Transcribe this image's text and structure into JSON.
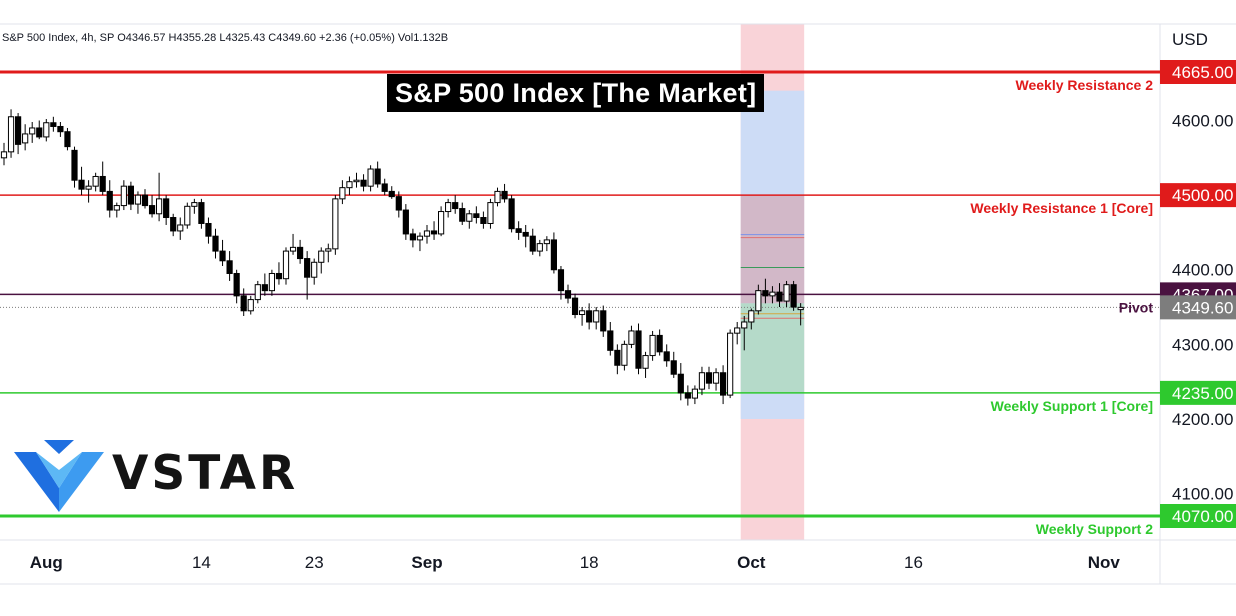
{
  "header": {
    "symbol_line": "S&P 500 Index, 4h, SP",
    "ohlc": "O4346.57 H4355.28 L4325.43 C4349.60 +2.36 (+0.05%) Vol1.132B"
  },
  "title": "S&P 500 Index [The Market]",
  "logo": {
    "text": "VSTAR",
    "icon": "vstar-v-logo-icon",
    "colors": [
      "#1f6fe0",
      "#5db8f5"
    ]
  },
  "currency": "USD",
  "chart_data": {
    "type": "candlestick",
    "y_range": [
      4040,
      4700
    ],
    "y_ticks": [
      {
        "value": 4600,
        "label": "4600.00"
      },
      {
        "value": 4400,
        "label": "4400.00"
      },
      {
        "value": 4300,
        "label": "4300.00"
      },
      {
        "value": 4200,
        "label": "4200.00"
      },
      {
        "value": 4100,
        "label": "4100.00"
      }
    ],
    "x_ticks": [
      {
        "bar": 6,
        "label": "Aug"
      },
      {
        "bar": 28,
        "label": "14"
      },
      {
        "bar": 44,
        "label": "23"
      },
      {
        "bar": 60,
        "label": "Sep"
      },
      {
        "bar": 83,
        "label": "18"
      },
      {
        "bar": 106,
        "label": "Oct"
      },
      {
        "bar": 129,
        "label": "16"
      },
      {
        "bar": 156,
        "label": "Nov"
      }
    ],
    "levels": [
      {
        "name": "Weekly Resistance 2",
        "value": 4665,
        "label": "4665.00",
        "color": "#e01b1b",
        "style": "thick"
      },
      {
        "name": "Weekly Resistance 1 [Core]",
        "value": 4500,
        "label": "4500.00",
        "color": "#e01b1b",
        "style": "normal"
      },
      {
        "name": "",
        "value": 4367,
        "label": "4367.00",
        "color": "#4a1240",
        "style": "normal"
      },
      {
        "name": "Pivot",
        "value": 4349.6,
        "label": "4349.60",
        "color": "#7d7d7d",
        "style": "dotted",
        "name_color": "#4a1240"
      },
      {
        "name": "Weekly Support 1 [Core]",
        "value": 4235,
        "label": "4235.00",
        "color": "#2ec92e",
        "style": "normal"
      },
      {
        "name": "Weekly Support 2",
        "value": 4070,
        "label": "4070.00",
        "color": "#2ec92e",
        "style": "thick"
      }
    ],
    "highlight_band": {
      "from_bar": 104.5,
      "to_bar": 113.5,
      "top_color": "#f9d3d8",
      "mid_color": "#cddcf6",
      "bottom_color": "#f9d3d8",
      "mid_range": [
        4200,
        4640
      ]
    },
    "projection_box": {
      "from_bar": 104.5,
      "to_bar": 113.5,
      "upper_range": [
        4355,
        4500
      ],
      "lower_range": [
        4235,
        4355
      ],
      "lines": [
        {
          "value": 4447,
          "color": "#7b92e8"
        },
        {
          "value": 4443,
          "color": "#e07070"
        },
        {
          "value": 4403,
          "color": "#3a9a5a"
        },
        {
          "value": 4341,
          "color": "#d4a640"
        },
        {
          "value": 4335,
          "color": "#e07070"
        }
      ]
    },
    "candles": [
      [
        4550,
        4570,
        4540,
        4558
      ],
      [
        4558,
        4615,
        4550,
        4605
      ],
      [
        4605,
        4610,
        4555,
        4568
      ],
      [
        4570,
        4595,
        4560,
        4582
      ],
      [
        4582,
        4598,
        4570,
        4590
      ],
      [
        4590,
        4600,
        4575,
        4578
      ],
      [
        4578,
        4602,
        4572,
        4597
      ],
      [
        4597,
        4605,
        4585,
        4592
      ],
      [
        4592,
        4598,
        4578,
        4585
      ],
      [
        4585,
        4590,
        4560,
        4565
      ],
      [
        4560,
        4565,
        4510,
        4520
      ],
      [
        4520,
        4538,
        4500,
        4508
      ],
      [
        4508,
        4520,
        4490,
        4512
      ],
      [
        4512,
        4530,
        4505,
        4525
      ],
      [
        4525,
        4545,
        4500,
        4505
      ],
      [
        4505,
        4520,
        4470,
        4480
      ],
      [
        4480,
        4490,
        4470,
        4486
      ],
      [
        4486,
        4520,
        4480,
        4512
      ],
      [
        4512,
        4518,
        4480,
        4488
      ],
      [
        4488,
        4505,
        4475,
        4500
      ],
      [
        4500,
        4508,
        4482,
        4486
      ],
      [
        4486,
        4500,
        4470,
        4475
      ],
      [
        4475,
        4530,
        4465,
        4495
      ],
      [
        4495,
        4500,
        4460,
        4470
      ],
      [
        4470,
        4475,
        4445,
        4452
      ],
      [
        4452,
        4470,
        4440,
        4460
      ],
      [
        4460,
        4490,
        4455,
        4485
      ],
      [
        4485,
        4495,
        4475,
        4490
      ],
      [
        4490,
        4495,
        4455,
        4462
      ],
      [
        4462,
        4470,
        4435,
        4445
      ],
      [
        4445,
        4455,
        4415,
        4425
      ],
      [
        4425,
        4440,
        4405,
        4412
      ],
      [
        4412,
        4425,
        4385,
        4395
      ],
      [
        4395,
        4400,
        4355,
        4365
      ],
      [
        4365,
        4375,
        4338,
        4345
      ],
      [
        4345,
        4365,
        4340,
        4360
      ],
      [
        4360,
        4385,
        4355,
        4380
      ],
      [
        4380,
        4395,
        4365,
        4372
      ],
      [
        4372,
        4400,
        4365,
        4395
      ],
      [
        4395,
        4410,
        4380,
        4388
      ],
      [
        4388,
        4430,
        4380,
        4425
      ],
      [
        4425,
        4448,
        4420,
        4430
      ],
      [
        4430,
        4440,
        4408,
        4415
      ],
      [
        4415,
        4425,
        4360,
        4390
      ],
      [
        4390,
        4415,
        4380,
        4410
      ],
      [
        4410,
        4430,
        4395,
        4425
      ],
      [
        4425,
        4435,
        4410,
        4428
      ],
      [
        4428,
        4500,
        4420,
        4495
      ],
      [
        4495,
        4520,
        4488,
        4510
      ],
      [
        4510,
        4525,
        4500,
        4518
      ],
      [
        4518,
        4530,
        4510,
        4520
      ],
      [
        4520,
        4528,
        4505,
        4512
      ],
      [
        4512,
        4540,
        4505,
        4535
      ],
      [
        4535,
        4545,
        4510,
        4515
      ],
      [
        4515,
        4522,
        4500,
        4505
      ],
      [
        4505,
        4512,
        4495,
        4498
      ],
      [
        4498,
        4505,
        4470,
        4480
      ],
      [
        4480,
        4488,
        4440,
        4448
      ],
      [
        4448,
        4455,
        4430,
        4440
      ],
      [
        4440,
        4450,
        4425,
        4445
      ],
      [
        4445,
        4460,
        4435,
        4452
      ],
      [
        4452,
        4465,
        4440,
        4448
      ],
      [
        4448,
        4485,
        4445,
        4478
      ],
      [
        4478,
        4495,
        4470,
        4490
      ],
      [
        4490,
        4500,
        4475,
        4482
      ],
      [
        4482,
        4490,
        4460,
        4465
      ],
      [
        4465,
        4480,
        4455,
        4475
      ],
      [
        4475,
        4485,
        4462,
        4470
      ],
      [
        4470,
        4478,
        4455,
        4462
      ],
      [
        4462,
        4495,
        4455,
        4490
      ],
      [
        4490,
        4510,
        4485,
        4505
      ],
      [
        4505,
        4515,
        4490,
        4495
      ],
      [
        4495,
        4500,
        4450,
        4455
      ],
      [
        4455,
        4465,
        4440,
        4450
      ],
      [
        4450,
        4460,
        4430,
        4445
      ],
      [
        4445,
        4455,
        4420,
        4425
      ],
      [
        4425,
        4440,
        4418,
        4435
      ],
      [
        4435,
        4445,
        4425,
        4440
      ],
      [
        4440,
        4450,
        4395,
        4400
      ],
      [
        4400,
        4405,
        4360,
        4372
      ],
      [
        4372,
        4380,
        4355,
        4362
      ],
      [
        4362,
        4368,
        4335,
        4340
      ],
      [
        4340,
        4350,
        4325,
        4345
      ],
      [
        4345,
        4355,
        4320,
        4330
      ],
      [
        4330,
        4350,
        4320,
        4345
      ],
      [
        4345,
        4352,
        4310,
        4318
      ],
      [
        4318,
        4330,
        4285,
        4292
      ],
      [
        4292,
        4300,
        4260,
        4272
      ],
      [
        4272,
        4305,
        4265,
        4300
      ],
      [
        4300,
        4325,
        4295,
        4318
      ],
      [
        4318,
        4328,
        4260,
        4268
      ],
      [
        4268,
        4290,
        4255,
        4285
      ],
      [
        4285,
        4318,
        4278,
        4312
      ],
      [
        4312,
        4320,
        4285,
        4290
      ],
      [
        4290,
        4300,
        4270,
        4278
      ],
      [
        4278,
        4290,
        4255,
        4260
      ],
      [
        4260,
        4275,
        4225,
        4235
      ],
      [
        4235,
        4245,
        4218,
        4228
      ],
      [
        4228,
        4245,
        4220,
        4240
      ],
      [
        4240,
        4270,
        4232,
        4262
      ],
      [
        4262,
        4270,
        4240,
        4248
      ],
      [
        4248,
        4268,
        4238,
        4262
      ],
      [
        4262,
        4272,
        4220,
        4232
      ],
      [
        4232,
        4320,
        4228,
        4315
      ],
      [
        4315,
        4330,
        4300,
        4322
      ],
      [
        4322,
        4338,
        4292,
        4330
      ],
      [
        4330,
        4348,
        4320,
        4345
      ],
      [
        4345,
        4380,
        4340,
        4372
      ],
      [
        4372,
        4388,
        4355,
        4365
      ],
      [
        4365,
        4378,
        4355,
        4370
      ],
      [
        4370,
        4382,
        4350,
        4358
      ],
      [
        4358,
        4385,
        4350,
        4380
      ],
      [
        4380,
        4385,
        4345,
        4350
      ],
      [
        4346.57,
        4355.28,
        4325.43,
        4349.6
      ]
    ]
  }
}
